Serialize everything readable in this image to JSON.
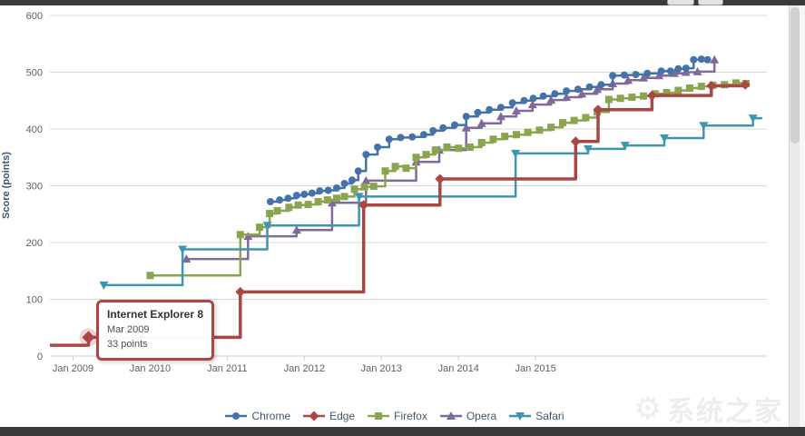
{
  "chart_data": {
    "type": "line",
    "title": "",
    "xlabel": "",
    "ylabel": "Score (points)",
    "xlim": [
      2008.7,
      2018.0
    ],
    "ylim": [
      0,
      600
    ],
    "grid": "horizontal",
    "legend_position": "bottom",
    "yticks": [
      0,
      100,
      200,
      300,
      400,
      500,
      600
    ],
    "xticks": [
      {
        "v": 2009,
        "label": "Jan 2009"
      },
      {
        "v": 2010,
        "label": "Jan 2010"
      },
      {
        "v": 2011,
        "label": "Jan 2011"
      },
      {
        "v": 2012,
        "label": "Jan 2012"
      },
      {
        "v": 2013,
        "label": "Jan 2013"
      },
      {
        "v": 2014,
        "label": "Jan 2014"
      },
      {
        "v": 2015,
        "label": "Jan 2015"
      }
    ],
    "series": [
      {
        "name": "Chrome",
        "color": "#4572A7",
        "marker": "circle",
        "z": 5,
        "points": [
          [
            2011.56,
            272
          ],
          [
            2011.68,
            275
          ],
          [
            2011.79,
            278
          ],
          [
            2011.9,
            283
          ],
          [
            2012.0,
            285
          ],
          [
            2012.1,
            287
          ],
          [
            2012.2,
            291
          ],
          [
            2012.31,
            292
          ],
          [
            2012.42,
            296
          ],
          [
            2012.52,
            304
          ],
          [
            2012.62,
            310
          ],
          [
            2012.7,
            326
          ],
          [
            2012.8,
            355
          ],
          [
            2012.95,
            368
          ],
          [
            2013.1,
            382
          ],
          [
            2013.25,
            385
          ],
          [
            2013.4,
            386
          ],
          [
            2013.55,
            390
          ],
          [
            2013.67,
            397
          ],
          [
            2013.8,
            402
          ],
          [
            2013.95,
            407
          ],
          [
            2014.1,
            422
          ],
          [
            2014.25,
            429
          ],
          [
            2014.4,
            434
          ],
          [
            2014.55,
            438
          ],
          [
            2014.7,
            446
          ],
          [
            2014.85,
            450
          ],
          [
            2014.97,
            454
          ],
          [
            2015.1,
            458
          ],
          [
            2015.25,
            462
          ],
          [
            2015.4,
            467
          ],
          [
            2015.55,
            470
          ],
          [
            2015.7,
            474
          ],
          [
            2015.85,
            478
          ],
          [
            2016.0,
            494
          ],
          [
            2016.15,
            495
          ],
          [
            2016.3,
            496
          ],
          [
            2016.45,
            498
          ],
          [
            2016.63,
            502
          ],
          [
            2016.75,
            502
          ],
          [
            2016.85,
            506
          ],
          [
            2016.95,
            507
          ],
          [
            2017.05,
            522
          ],
          [
            2017.15,
            523
          ],
          [
            2017.23,
            522
          ]
        ]
      },
      {
        "name": "Edge",
        "color": "#AA4643",
        "marker": "diamond",
        "z": 4,
        "emphasis": true,
        "start_marker": false,
        "points": [
          [
            2008.7,
            19
          ],
          [
            2009.2,
            33
          ],
          [
            2011.17,
            113
          ],
          [
            2012.77,
            266
          ],
          [
            2013.76,
            312
          ],
          [
            2015.52,
            378
          ],
          [
            2015.81,
            434
          ],
          [
            2016.51,
            459
          ],
          [
            2017.28,
            476
          ],
          [
            2017.72,
            478
          ]
        ]
      },
      {
        "name": "Firefox",
        "color": "#89A54E",
        "marker": "square",
        "z": 2,
        "points": [
          [
            2010.0,
            142
          ],
          [
            2011.17,
            214
          ],
          [
            2011.42,
            227
          ],
          [
            2011.55,
            251
          ],
          [
            2011.65,
            256
          ],
          [
            2011.8,
            262
          ],
          [
            2011.92,
            266
          ],
          [
            2012.05,
            267
          ],
          [
            2012.18,
            272
          ],
          [
            2012.3,
            275
          ],
          [
            2012.42,
            278
          ],
          [
            2012.52,
            281
          ],
          [
            2012.65,
            294
          ],
          [
            2012.78,
            298
          ],
          [
            2012.9,
            299
          ],
          [
            2013.05,
            326
          ],
          [
            2013.18,
            334
          ],
          [
            2013.32,
            331
          ],
          [
            2013.45,
            350
          ],
          [
            2013.58,
            355
          ],
          [
            2013.7,
            363
          ],
          [
            2013.85,
            368
          ],
          [
            2014.0,
            366
          ],
          [
            2014.15,
            368
          ],
          [
            2014.3,
            376
          ],
          [
            2014.45,
            382
          ],
          [
            2014.6,
            387
          ],
          [
            2014.75,
            390
          ],
          [
            2014.9,
            394
          ],
          [
            2015.05,
            398
          ],
          [
            2015.2,
            403
          ],
          [
            2015.35,
            411
          ],
          [
            2015.5,
            415
          ],
          [
            2015.65,
            420
          ],
          [
            2015.8,
            430
          ],
          [
            2015.95,
            452
          ],
          [
            2016.1,
            454
          ],
          [
            2016.25,
            456
          ],
          [
            2016.4,
            458
          ],
          [
            2016.55,
            462
          ],
          [
            2016.7,
            464
          ],
          [
            2016.85,
            468
          ],
          [
            2017.0,
            472
          ],
          [
            2017.15,
            475
          ],
          [
            2017.3,
            477
          ],
          [
            2017.45,
            478
          ],
          [
            2017.6,
            481
          ],
          [
            2017.73,
            480
          ]
        ]
      },
      {
        "name": "Opera",
        "color": "#80699B",
        "marker": "triangle-up",
        "z": 1,
        "points": [
          [
            2010.47,
            171
          ],
          [
            2011.27,
            211
          ],
          [
            2011.9,
            222
          ],
          [
            2012.36,
            270
          ],
          [
            2012.8,
            309
          ],
          [
            2013.45,
            342
          ],
          [
            2013.75,
            363
          ],
          [
            2014.1,
            402
          ],
          [
            2014.3,
            410
          ],
          [
            2014.55,
            422
          ],
          [
            2014.75,
            432
          ],
          [
            2014.96,
            443
          ],
          [
            2015.2,
            451
          ],
          [
            2015.4,
            456
          ],
          [
            2015.6,
            462
          ],
          [
            2015.8,
            470
          ],
          [
            2016.0,
            480
          ],
          [
            2016.2,
            486
          ],
          [
            2016.4,
            490
          ],
          [
            2016.6,
            494
          ],
          [
            2016.8,
            498
          ],
          [
            2016.95,
            500
          ],
          [
            2017.1,
            501
          ],
          [
            2017.32,
            522
          ]
        ]
      },
      {
        "name": "Safari",
        "color": "#3D96AE",
        "marker": "triangle-down",
        "z": 3,
        "extend_to": 2017.94,
        "points": [
          [
            2009.4,
            125
          ],
          [
            2010.42,
            188
          ],
          [
            2011.52,
            230
          ],
          [
            2012.71,
            281
          ],
          [
            2014.74,
            357
          ],
          [
            2015.68,
            365
          ],
          [
            2016.16,
            371
          ],
          [
            2016.67,
            384
          ],
          [
            2017.18,
            406
          ],
          [
            2017.82,
            419
          ]
        ]
      }
    ],
    "tooltip": {
      "series": "Edge",
      "title": "Internet Explorer 8",
      "date": "Mar 2009",
      "points": "33 points",
      "x": 2009.2,
      "y": 33
    }
  },
  "watermark": {
    "text": "系统之家"
  }
}
